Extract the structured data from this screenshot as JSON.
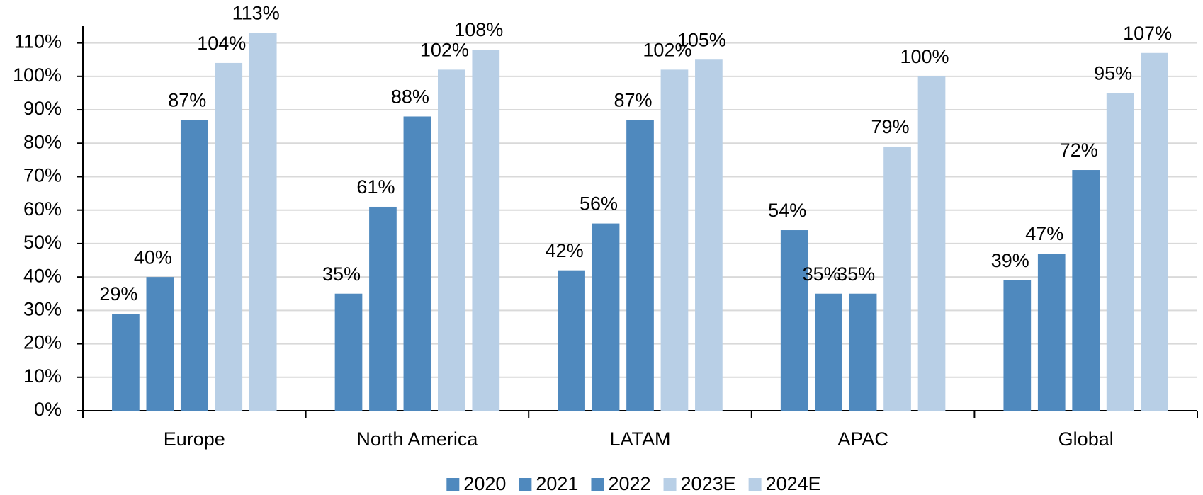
{
  "chart_data": {
    "type": "bar",
    "categories": [
      "Europe",
      "North America",
      "LATAM",
      "APAC",
      "Global"
    ],
    "series": [
      {
        "name": "2020",
        "color": "#4f89be",
        "values": [
          29,
          35,
          42,
          54,
          39
        ],
        "value_labels": [
          "29%",
          "35%",
          "42%",
          "54%",
          "39%"
        ]
      },
      {
        "name": "2021",
        "color": "#4f89be",
        "values": [
          40,
          61,
          56,
          35,
          47
        ],
        "value_labels": [
          "40%",
          "61%",
          "56%",
          "35%",
          "47%"
        ]
      },
      {
        "name": "2022",
        "color": "#4f89be",
        "values": [
          87,
          88,
          87,
          35,
          72
        ],
        "value_labels": [
          "87%",
          "88%",
          "87%",
          "35%",
          "72%"
        ]
      },
      {
        "name": "2023E",
        "color": "#b8cfe6",
        "values": [
          104,
          102,
          102,
          79,
          95
        ],
        "value_labels": [
          "104%",
          "102%",
          "102%",
          "79%",
          "95%"
        ]
      },
      {
        "name": "2024E",
        "color": "#b8cfe6",
        "values": [
          113,
          108,
          105,
          100,
          107
        ],
        "value_labels": [
          "113%",
          "108%",
          "105%",
          "100%",
          "107%"
        ]
      }
    ],
    "ylim": [
      0,
      115
    ],
    "yticks": [
      {
        "value": 0,
        "label": "0%"
      },
      {
        "value": 10,
        "label": "10%"
      },
      {
        "value": 20,
        "label": "20%"
      },
      {
        "value": 30,
        "label": "30%"
      },
      {
        "value": 40,
        "label": "40%"
      },
      {
        "value": 50,
        "label": "50%"
      },
      {
        "value": 60,
        "label": "60%"
      },
      {
        "value": 70,
        "label": "70%"
      },
      {
        "value": 80,
        "label": "80%"
      },
      {
        "value": 90,
        "label": "90%"
      },
      {
        "value": 100,
        "label": "100%"
      },
      {
        "value": 110,
        "label": "110%"
      }
    ],
    "grid": true,
    "legend": "bottom"
  }
}
